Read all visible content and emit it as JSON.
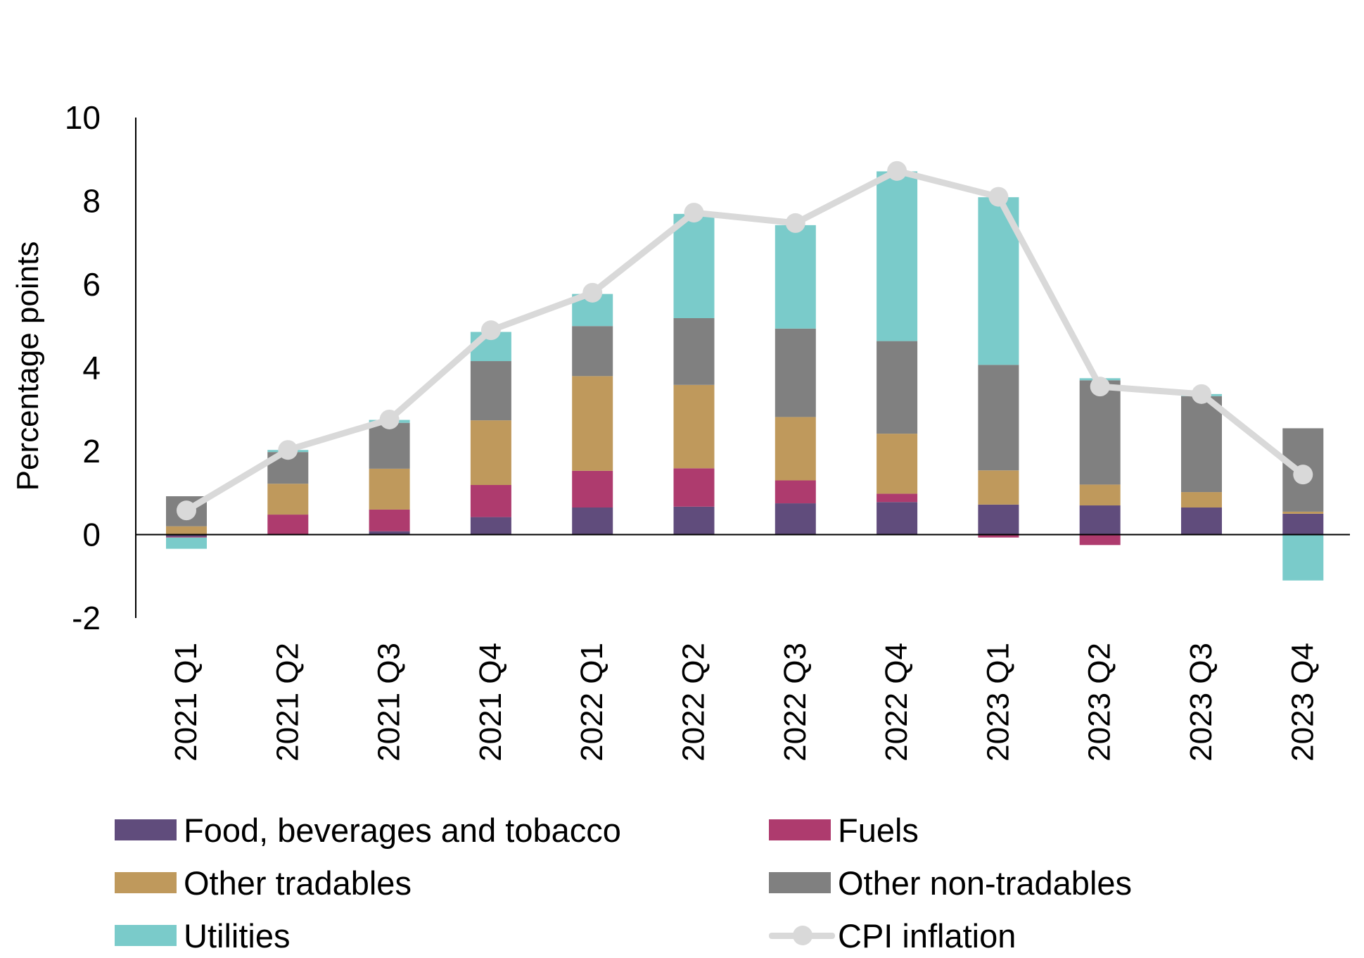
{
  "chart_data": {
    "type": "bar",
    "stacked": true,
    "ylabel": "Percentage points",
    "xlabel": "",
    "ylim": [
      -2,
      10
    ],
    "yticks": [
      -2,
      0,
      2,
      4,
      6,
      8,
      10
    ],
    "ytick_labels": [
      "-2",
      "0",
      "2",
      "4",
      "6",
      "8",
      "10"
    ],
    "categories": [
      "2021 Q1",
      "2021 Q2",
      "2021 Q3",
      "2021 Q4",
      "2022 Q1",
      "2022 Q2",
      "2022 Q3",
      "2022 Q4",
      "2023 Q1",
      "2023 Q2",
      "2023 Q3",
      "2023 Q4"
    ],
    "series": [
      {
        "name": "Food, beverages and tobacco",
        "kind": "bar",
        "color": "#604c7c",
        "values": [
          -0.05,
          0.0,
          0.08,
          0.42,
          0.65,
          0.67,
          0.75,
          0.78,
          0.72,
          0.7,
          0.65,
          0.5
        ]
      },
      {
        "name": "Fuels",
        "kind": "bar",
        "color": "#ae3b6e",
        "values": [
          -0.02,
          0.48,
          0.52,
          0.77,
          0.88,
          0.92,
          0.55,
          0.2,
          -0.07,
          -0.25,
          0.0,
          0.0
        ]
      },
      {
        "name": "Other tradables",
        "kind": "bar",
        "color": "#bf995c",
        "values": [
          0.2,
          0.74,
          0.98,
          1.55,
          2.27,
          2.0,
          1.52,
          1.44,
          0.82,
          0.5,
          0.37,
          0.05
        ]
      },
      {
        "name": "Other non-tradables",
        "kind": "bar",
        "color": "#808080",
        "values": [
          0.72,
          0.76,
          1.1,
          1.42,
          1.2,
          1.6,
          2.12,
          2.22,
          2.53,
          2.5,
          2.3,
          2.0
        ]
      },
      {
        "name": "Utilities",
        "kind": "bar",
        "color": "#7acbca",
        "values": [
          -0.27,
          0.05,
          0.07,
          0.7,
          0.77,
          2.5,
          2.48,
          4.07,
          4.02,
          0.05,
          0.05,
          -1.1
        ]
      },
      {
        "name": "CPI inflation",
        "kind": "line",
        "color": "#d9d9d9",
        "values": [
          0.58,
          2.03,
          2.76,
          4.9,
          5.8,
          7.72,
          7.47,
          8.72,
          8.1,
          3.55,
          3.37,
          1.44
        ]
      }
    ],
    "legend_position": "bottom",
    "grid": false
  }
}
